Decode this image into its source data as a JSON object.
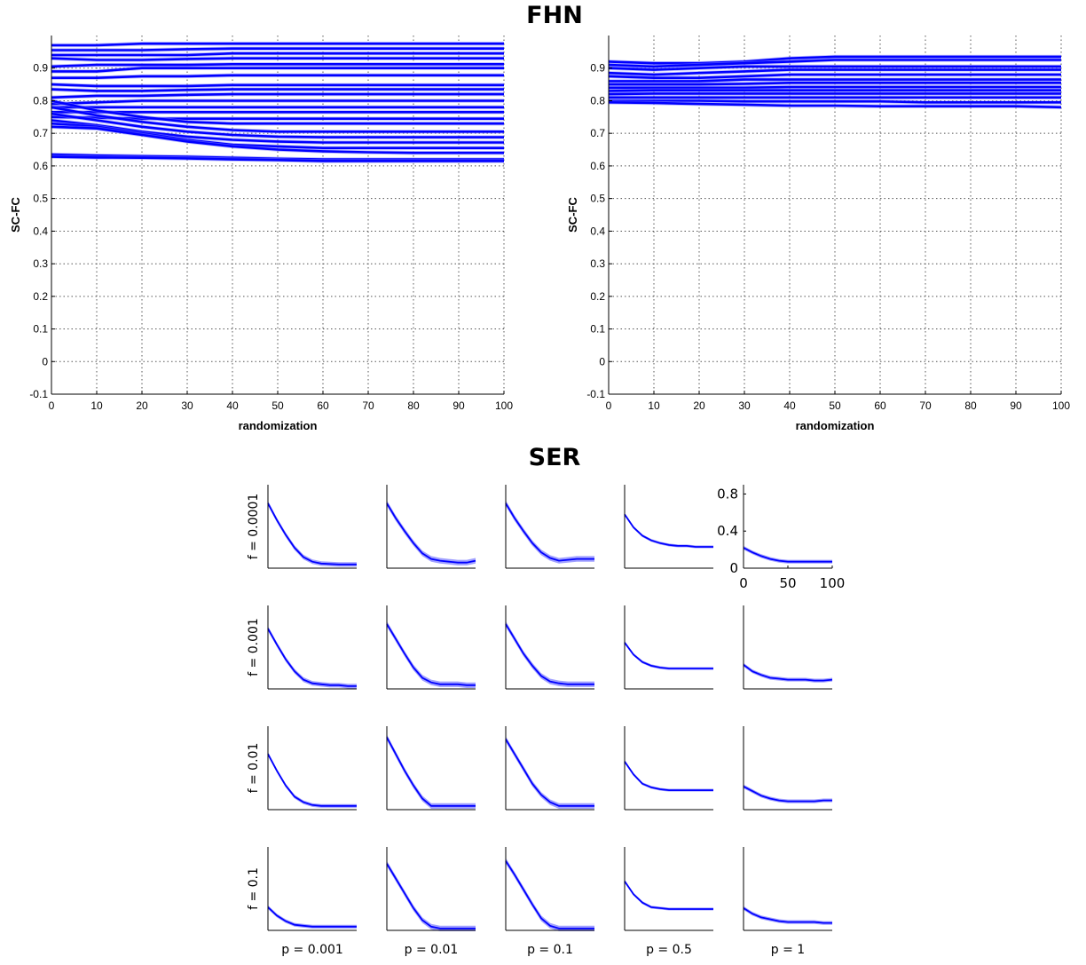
{
  "titles": {
    "fhn": "FHN",
    "ser": "SER"
  },
  "colors": {
    "line": "#0000ff",
    "band": "#8080ff",
    "grid": "#555555",
    "axis": "#000000"
  },
  "chart_data": [
    {
      "id": "fhn_left",
      "type": "line",
      "xlabel": "randomization",
      "ylabel": "SC-FC",
      "xlim": [
        0,
        100
      ],
      "ylim": [
        -0.1,
        1.0
      ],
      "xticks": [
        "0",
        "10",
        "20",
        "30",
        "40",
        "50",
        "60",
        "70",
        "80",
        "90",
        "100"
      ],
      "yticks": [
        "-0.1",
        "0",
        "0.1",
        "0.2",
        "0.3",
        "0.4",
        "0.5",
        "0.6",
        "0.7",
        "0.8",
        "0.9"
      ],
      "grid": true,
      "x": [
        0,
        10,
        20,
        30,
        40,
        50,
        60,
        70,
        80,
        90,
        100
      ],
      "series": [
        {
          "values": [
            0.97,
            0.97,
            0.975,
            0.975,
            0.975,
            0.975,
            0.975,
            0.975,
            0.975,
            0.975,
            0.975
          ]
        },
        {
          "values": [
            0.955,
            0.955,
            0.955,
            0.958,
            0.96,
            0.96,
            0.96,
            0.96,
            0.96,
            0.96,
            0.96
          ]
        },
        {
          "values": [
            0.94,
            0.94,
            0.94,
            0.94,
            0.945,
            0.945,
            0.945,
            0.945,
            0.945,
            0.945,
            0.945
          ]
        },
        {
          "values": [
            0.93,
            0.925,
            0.925,
            0.928,
            0.93,
            0.93,
            0.93,
            0.93,
            0.93,
            0.93,
            0.93
          ]
        },
        {
          "values": [
            0.905,
            0.91,
            0.91,
            0.91,
            0.912,
            0.912,
            0.912,
            0.912,
            0.912,
            0.912,
            0.912
          ]
        },
        {
          "values": [
            0.89,
            0.89,
            0.9,
            0.9,
            0.9,
            0.9,
            0.9,
            0.9,
            0.9,
            0.9,
            0.9
          ]
        },
        {
          "values": [
            0.87,
            0.87,
            0.875,
            0.875,
            0.878,
            0.878,
            0.878,
            0.878,
            0.878,
            0.878,
            0.878
          ]
        },
        {
          "values": [
            0.85,
            0.845,
            0.845,
            0.845,
            0.848,
            0.848,
            0.848,
            0.848,
            0.848,
            0.848,
            0.848
          ]
        },
        {
          "values": [
            0.835,
            0.83,
            0.83,
            0.833,
            0.835,
            0.835,
            0.835,
            0.835,
            0.835,
            0.835,
            0.835
          ]
        },
        {
          "values": [
            0.81,
            0.815,
            0.815,
            0.818,
            0.82,
            0.82,
            0.82,
            0.82,
            0.82,
            0.82,
            0.82
          ]
        },
        {
          "values": [
            0.79,
            0.795,
            0.8,
            0.8,
            0.8,
            0.8,
            0.8,
            0.8,
            0.8,
            0.8,
            0.8
          ]
        },
        {
          "values": [
            0.78,
            0.78,
            0.78,
            0.78,
            0.78,
            0.78,
            0.78,
            0.78,
            0.78,
            0.78,
            0.78
          ]
        },
        {
          "values": [
            0.765,
            0.765,
            0.765,
            0.765,
            0.765,
            0.765,
            0.765,
            0.765,
            0.765,
            0.765,
            0.765
          ]
        },
        {
          "values": [
            0.75,
            0.748,
            0.745,
            0.745,
            0.745,
            0.745,
            0.745,
            0.745,
            0.745,
            0.745,
            0.745
          ]
        },
        {
          "values": [
            0.8,
            0.77,
            0.75,
            0.735,
            0.73,
            0.73,
            0.73,
            0.73,
            0.73,
            0.73,
            0.73
          ]
        },
        {
          "values": [
            0.78,
            0.755,
            0.735,
            0.72,
            0.71,
            0.705,
            0.705,
            0.705,
            0.705,
            0.705,
            0.705
          ]
        },
        {
          "values": [
            0.76,
            0.74,
            0.72,
            0.705,
            0.695,
            0.69,
            0.688,
            0.688,
            0.688,
            0.688,
            0.688
          ]
        },
        {
          "values": [
            0.74,
            0.725,
            0.705,
            0.69,
            0.68,
            0.675,
            0.672,
            0.672,
            0.672,
            0.672,
            0.672
          ]
        },
        {
          "values": [
            0.73,
            0.72,
            0.7,
            0.68,
            0.665,
            0.66,
            0.655,
            0.655,
            0.655,
            0.655,
            0.655
          ]
        },
        {
          "values": [
            0.72,
            0.715,
            0.695,
            0.675,
            0.66,
            0.65,
            0.645,
            0.642,
            0.64,
            0.64,
            0.64
          ]
        },
        {
          "values": [
            0.635,
            0.632,
            0.63,
            0.628,
            0.625,
            0.622,
            0.62,
            0.62,
            0.62,
            0.62,
            0.62
          ]
        },
        {
          "values": [
            0.628,
            0.626,
            0.625,
            0.623,
            0.62,
            0.618,
            0.615,
            0.615,
            0.615,
            0.615,
            0.615
          ]
        }
      ]
    },
    {
      "id": "fhn_right",
      "type": "line",
      "xlabel": "randomization",
      "ylabel": "SC-FC",
      "xlim": [
        0,
        100
      ],
      "ylim": [
        -0.1,
        1.0
      ],
      "xticks": [
        "0",
        "10",
        "20",
        "30",
        "40",
        "50",
        "60",
        "70",
        "80",
        "90",
        "100"
      ],
      "yticks": [
        "-0.1",
        "0",
        "0.1",
        "0.2",
        "0.3",
        "0.4",
        "0.5",
        "0.6",
        "0.7",
        "0.8",
        "0.9"
      ],
      "grid": true,
      "x": [
        0,
        10,
        20,
        30,
        40,
        50,
        60,
        70,
        80,
        90,
        100
      ],
      "series": [
        {
          "values": [
            0.92,
            0.915,
            0.915,
            0.92,
            0.93,
            0.935,
            0.935,
            0.935,
            0.935,
            0.935,
            0.935
          ]
        },
        {
          "values": [
            0.91,
            0.905,
            0.91,
            0.915,
            0.92,
            0.925,
            0.925,
            0.925,
            0.925,
            0.925,
            0.925
          ]
        },
        {
          "values": [
            0.9,
            0.895,
            0.9,
            0.905,
            0.905,
            0.905,
            0.905,
            0.905,
            0.905,
            0.905,
            0.905
          ]
        },
        {
          "values": [
            0.885,
            0.88,
            0.885,
            0.89,
            0.895,
            0.895,
            0.895,
            0.895,
            0.895,
            0.895,
            0.895
          ]
        },
        {
          "values": [
            0.875,
            0.87,
            0.87,
            0.875,
            0.88,
            0.88,
            0.88,
            0.88,
            0.88,
            0.88,
            0.88
          ]
        },
        {
          "values": [
            0.86,
            0.86,
            0.86,
            0.865,
            0.865,
            0.865,
            0.865,
            0.865,
            0.865,
            0.865,
            0.865
          ]
        },
        {
          "values": [
            0.85,
            0.85,
            0.85,
            0.852,
            0.855,
            0.855,
            0.855,
            0.855,
            0.855,
            0.855,
            0.855
          ]
        },
        {
          "values": [
            0.84,
            0.84,
            0.84,
            0.84,
            0.842,
            0.842,
            0.842,
            0.842,
            0.842,
            0.842,
            0.842
          ]
        },
        {
          "values": [
            0.83,
            0.832,
            0.832,
            0.832,
            0.832,
            0.832,
            0.832,
            0.832,
            0.832,
            0.832,
            0.832
          ]
        },
        {
          "values": [
            0.82,
            0.822,
            0.822,
            0.822,
            0.822,
            0.822,
            0.822,
            0.822,
            0.822,
            0.822,
            0.822
          ]
        },
        {
          "values": [
            0.81,
            0.81,
            0.81,
            0.81,
            0.81,
            0.81,
            0.81,
            0.81,
            0.81,
            0.81,
            0.81
          ]
        },
        {
          "values": [
            0.8,
            0.8,
            0.8,
            0.798,
            0.798,
            0.798,
            0.798,
            0.795,
            0.795,
            0.795,
            0.795
          ]
        },
        {
          "values": [
            0.795,
            0.793,
            0.79,
            0.788,
            0.785,
            0.785,
            0.783,
            0.783,
            0.783,
            0.783,
            0.78
          ]
        }
      ]
    },
    {
      "id": "ser_grid",
      "type": "line",
      "rows": [
        "f = 0.0001",
        "f = 0.001",
        "f = 0.01",
        "f = 0.1"
      ],
      "cols": [
        "p = 0.001",
        "p = 0.01",
        "p = 0.1",
        "p = 0.5",
        "p = 1"
      ],
      "xlim": [
        0,
        100
      ],
      "ylim": [
        0,
        0.9
      ],
      "axes_panel": {
        "row": 0,
        "col": 4,
        "xticks": [
          "0",
          "50",
          "100"
        ],
        "yticks": [
          "0",
          "0.4",
          "0.8"
        ]
      },
      "x": [
        0,
        10,
        20,
        30,
        40,
        50,
        60,
        70,
        80,
        90,
        100
      ],
      "panels": [
        [
          {
            "values": [
              0.7,
              0.52,
              0.36,
              0.22,
              0.12,
              0.07,
              0.05,
              0.045,
              0.04,
              0.04,
              0.04
            ],
            "band": 0.025
          },
          {
            "values": [
              0.7,
              0.54,
              0.4,
              0.27,
              0.16,
              0.1,
              0.08,
              0.07,
              0.06,
              0.06,
              0.08
            ],
            "band": 0.03
          },
          {
            "values": [
              0.7,
              0.54,
              0.4,
              0.27,
              0.17,
              0.11,
              0.08,
              0.09,
              0.1,
              0.1,
              0.1
            ],
            "band": 0.03
          },
          {
            "values": [
              0.58,
              0.44,
              0.35,
              0.3,
              0.27,
              0.25,
              0.24,
              0.24,
              0.23,
              0.23,
              0.23
            ],
            "band": 0.015
          },
          {
            "values": [
              0.22,
              0.17,
              0.13,
              0.1,
              0.08,
              0.07,
              0.07,
              0.07,
              0.07,
              0.07,
              0.07
            ],
            "band": 0.02
          }
        ],
        [
          {
            "values": [
              0.65,
              0.48,
              0.32,
              0.19,
              0.1,
              0.06,
              0.05,
              0.04,
              0.04,
              0.03,
              0.03
            ],
            "band": 0.025
          },
          {
            "values": [
              0.7,
              0.54,
              0.38,
              0.23,
              0.12,
              0.07,
              0.05,
              0.05,
              0.05,
              0.04,
              0.04
            ],
            "band": 0.03
          },
          {
            "values": [
              0.7,
              0.54,
              0.38,
              0.25,
              0.14,
              0.08,
              0.06,
              0.05,
              0.05,
              0.05,
              0.05
            ],
            "band": 0.03
          },
          {
            "values": [
              0.5,
              0.37,
              0.29,
              0.25,
              0.23,
              0.22,
              0.22,
              0.22,
              0.22,
              0.22,
              0.22
            ],
            "band": 0.015
          },
          {
            "values": [
              0.26,
              0.19,
              0.15,
              0.12,
              0.11,
              0.1,
              0.1,
              0.1,
              0.09,
              0.09,
              0.1
            ],
            "band": 0.02
          }
        ],
        [
          {
            "values": [
              0.6,
              0.42,
              0.26,
              0.14,
              0.08,
              0.05,
              0.04,
              0.04,
              0.04,
              0.04,
              0.04
            ],
            "band": 0.02
          },
          {
            "values": [
              0.78,
              0.6,
              0.42,
              0.26,
              0.12,
              0.04,
              0.04,
              0.04,
              0.04,
              0.04,
              0.04
            ],
            "band": 0.03
          },
          {
            "values": [
              0.76,
              0.6,
              0.44,
              0.28,
              0.16,
              0.08,
              0.04,
              0.04,
              0.04,
              0.04,
              0.04
            ],
            "band": 0.03
          },
          {
            "values": [
              0.52,
              0.38,
              0.28,
              0.24,
              0.22,
              0.21,
              0.21,
              0.21,
              0.21,
              0.21,
              0.21
            ],
            "band": 0.015
          },
          {
            "values": [
              0.25,
              0.2,
              0.15,
              0.12,
              0.1,
              0.09,
              0.09,
              0.09,
              0.09,
              0.1,
              0.1
            ],
            "band": 0.02
          }
        ],
        [
          {
            "values": [
              0.25,
              0.16,
              0.1,
              0.06,
              0.05,
              0.04,
              0.04,
              0.04,
              0.04,
              0.04,
              0.04
            ],
            "band": 0.02
          },
          {
            "values": [
              0.72,
              0.56,
              0.4,
              0.24,
              0.11,
              0.04,
              0.02,
              0.02,
              0.02,
              0.02,
              0.02
            ],
            "band": 0.03
          },
          {
            "values": [
              0.75,
              0.6,
              0.44,
              0.28,
              0.13,
              0.05,
              0.02,
              0.02,
              0.02,
              0.02,
              0.02
            ],
            "band": 0.03
          },
          {
            "values": [
              0.53,
              0.39,
              0.3,
              0.25,
              0.24,
              0.23,
              0.23,
              0.23,
              0.23,
              0.23,
              0.23
            ],
            "band": 0.015
          },
          {
            "values": [
              0.24,
              0.18,
              0.14,
              0.12,
              0.1,
              0.09,
              0.09,
              0.09,
              0.09,
              0.08,
              0.08
            ],
            "band": 0.02
          }
        ]
      ]
    }
  ]
}
